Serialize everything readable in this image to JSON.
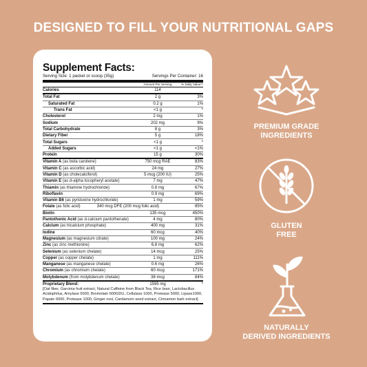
{
  "headline": "DESIGNED TO FILL YOUR NUTRITIONAL GAPS",
  "facts": {
    "title": "Supplement Facts:",
    "serving_size": "Serving Size: 1 packet or scoop (35g)",
    "servings_per_container": "Servings Per Container: 16",
    "col_amount": "Amount Per Serving",
    "col_dv": "% Daily Value**",
    "rows": [
      {
        "name": "Calories",
        "sub": "",
        "amount": "114",
        "dv": "",
        "indent": 0,
        "bold": true
      },
      {
        "name": "Total Fat",
        "sub": "",
        "amount": "2 g",
        "dv": "3%",
        "indent": 0,
        "bold": true
      },
      {
        "name": "Saturated Fat",
        "sub": "",
        "amount": "0.2 g",
        "dv": "1%",
        "indent": 1,
        "bold": true
      },
      {
        "name": "Trans Fat",
        "sub": "",
        "amount": "<1 g",
        "dv": "*",
        "indent": 2,
        "bold": true
      },
      {
        "name": "Cholesterol",
        "sub": "",
        "amount": "2 mg",
        "dv": "1%",
        "indent": 0,
        "bold": true
      },
      {
        "name": "Sodium",
        "sub": "",
        "amount": "202 mg",
        "dv": "9%",
        "indent": 0,
        "bold": true
      },
      {
        "name": "Total Carbohydrate",
        "sub": "",
        "amount": "8 g",
        "dv": "3%",
        "indent": 0,
        "bold": true
      },
      {
        "name": "Dietary Fiber",
        "sub": "",
        "amount": "5 g",
        "dv": "18%",
        "indent": 0,
        "bold": true
      },
      {
        "name": "Total Sugars",
        "sub": "",
        "amount": "<1 g",
        "dv": "*",
        "indent": 0,
        "bold": true
      },
      {
        "name": "Added Sugars",
        "sub": "",
        "amount": "<1 g",
        "dv": "<1%",
        "indent": 1,
        "bold": true
      },
      {
        "name": "Protein",
        "sub": "",
        "amount": "15 g",
        "dv": "30%",
        "indent": 0,
        "bold": true
      },
      {
        "name": "Vitamin A",
        "sub": " (as beta carotene)",
        "amount": "750 mcg RAE",
        "dv": "83%",
        "indent": 0,
        "bold": true
      },
      {
        "name": "Vitamin C",
        "sub": " (as ascorbic acid)",
        "amount": "24 mg",
        "dv": "27%",
        "indent": 0,
        "bold": true
      },
      {
        "name": "Vitamin D",
        "sub": " (as cholecalciferol)",
        "amount": "5 mcg (200 IU)",
        "dv": "25%",
        "indent": 0,
        "bold": true
      },
      {
        "name": "Vitamin E",
        "sub": " (as d-alpha tocopheryl acetate)",
        "amount": "7 mg",
        "dv": "47%",
        "indent": 0,
        "bold": true
      },
      {
        "name": "Thiamin",
        "sub": " (as thiamine hydrochloride)",
        "amount": "0.8 mg",
        "dv": "67%",
        "indent": 0,
        "bold": true
      },
      {
        "name": "Riboflavin",
        "sub": "",
        "amount": "0.9 mg",
        "dv": "69%",
        "indent": 0,
        "bold": true
      },
      {
        "name": "Vitamin B6",
        "sub": " (as pyridoxine hydrochloride)",
        "amount": "1 mg",
        "dv": "59%",
        "indent": 0,
        "bold": true
      },
      {
        "name": "Folate",
        "sub": " (as folic acid)",
        "amount": "340 mcg DFE (200 mcg folic acid)",
        "dv": "85%",
        "indent": 0,
        "bold": true,
        "merged": true
      },
      {
        "name": "Biotin",
        "sub": "",
        "amount": "135 mcg",
        "dv": "450%",
        "indent": 0,
        "bold": true
      },
      {
        "name": "Pantothenic Acid",
        "sub": " (as d-calcium pantothenate)",
        "amount": "4 mg",
        "dv": "80%",
        "indent": 0,
        "bold": true
      },
      {
        "name": "Calcium",
        "sub": " (as tricalcium phosphate)",
        "amount": "400 mg",
        "dv": "31%",
        "indent": 0,
        "bold": true
      },
      {
        "name": "Iodine",
        "sub": "",
        "amount": "60 mcg",
        "dv": "40%",
        "indent": 0,
        "bold": true
      },
      {
        "name": "Magnesium",
        "sub": " (as magnesium citrate)",
        "amount": "100 mg",
        "dv": "24%",
        "indent": 0,
        "bold": true
      },
      {
        "name": "Zinc",
        "sub": " (as zinc methionine)",
        "amount": "6.8 mg",
        "dv": "62%",
        "indent": 0,
        "bold": true
      },
      {
        "name": "Selenium",
        "sub": " (as selenium chelate)",
        "amount": "14 mcg",
        "dv": "25%",
        "indent": 0,
        "bold": true
      },
      {
        "name": "Copper",
        "sub": " (as copper chelate)",
        "amount": "1 mg",
        "dv": "111%",
        "indent": 0,
        "bold": true
      },
      {
        "name": "Manganese",
        "sub": " (as manganese chelate)",
        "amount": "0.6 mg",
        "dv": "26%",
        "indent": 0,
        "bold": true
      },
      {
        "name": "Chromium",
        "sub": " (as chromium chelate)",
        "amount": "60 mcg",
        "dv": "171%",
        "indent": 0,
        "bold": true
      },
      {
        "name": "Molybdenum",
        "sub": " (from molybdenum chelate)",
        "amount": "38 mcg",
        "dv": "84%",
        "indent": 0,
        "bold": true
      }
    ],
    "blend_name": "Proprietary Blend:",
    "blend_amount": "1595 mg",
    "blend_dv": "*",
    "blend_text": "[Oat fiber, Garcinia fruit extract, Natural Caffeine from Black Tea, Rice bran, Lactobacillus Acidophilus, Amylase 5000, Bromelain 600GDU, Cellulase 1000, Protease 5000, Lipase1000, Papain 6000, Protease 1000, Ginger root, Cardamom seed extract, Cinnamon bark extract]"
  },
  "badges": [
    {
      "icon": "three-stars-icon",
      "label_line1": "PREMIUM GRADE",
      "label_line2": "INGREDIENTS"
    },
    {
      "icon": "no-wheat-icon",
      "label_line1": "GLUTEN",
      "label_line2": "FREE"
    },
    {
      "icon": "flask-plant-icon",
      "label_line1": "NATURALLY",
      "label_line2": "DERIVED INGREDIENTS"
    }
  ],
  "colors": {
    "background": "#d9a788",
    "panel": "#ffffff",
    "text_on_bg": "#ffffff"
  }
}
